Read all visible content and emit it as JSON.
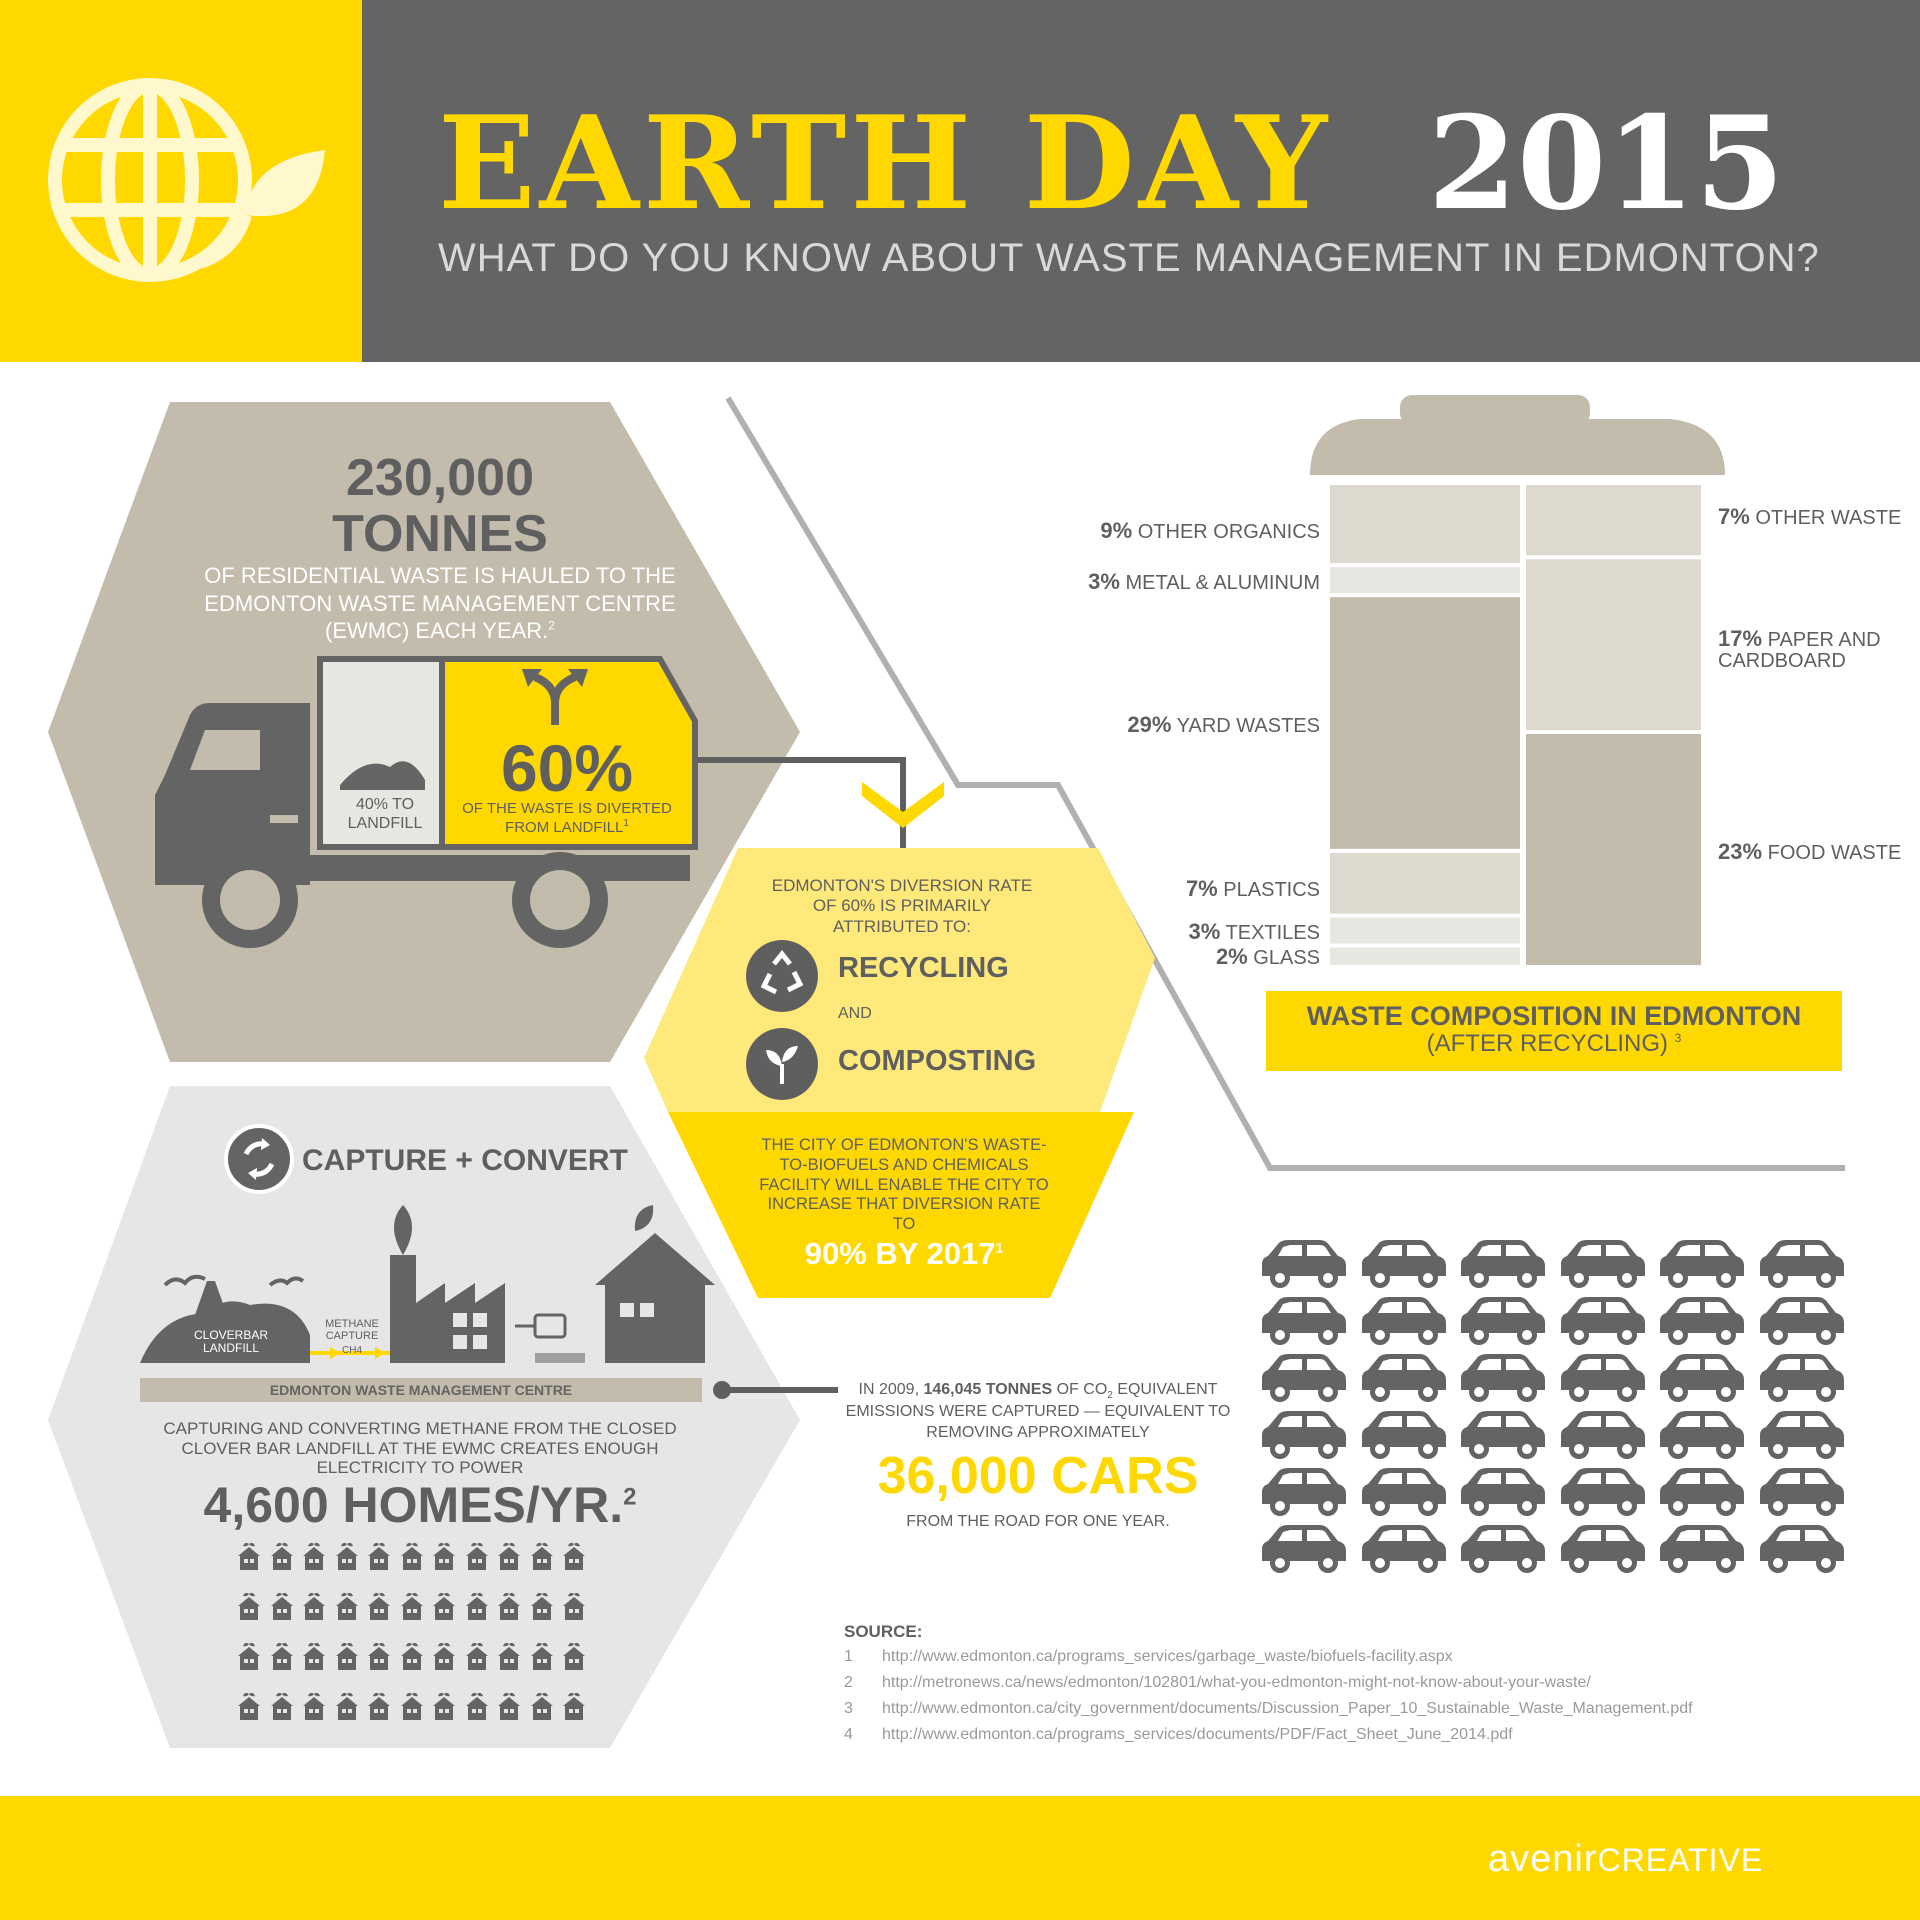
{
  "header": {
    "title_main": "EARTH DAY",
    "title_year": "2015",
    "subtitle": "WHAT DO YOU KNOW ABOUT WASTE MANAGEMENT IN EDMONTON?",
    "logo_icon": "globe-leaf-icon"
  },
  "residential": {
    "amount": "230,000",
    "unit": "TONNES",
    "desc": "OF RESIDENTIAL WASTE IS HAULED TO THE EDMONTON WASTE MANAGEMENT CENTRE (EWMC) EACH YEAR.",
    "desc_ref": "2",
    "landfill_label": "40% TO LANDFILL",
    "diverted_pct": "60%",
    "diverted_desc": "OF THE WASTE IS DIVERTED FROM LANDFILL",
    "diverted_ref": "1",
    "truck_icon": "truck-icon",
    "split_arrow_icon": "split-arrow-icon"
  },
  "diversion": {
    "intro": "EDMONTON'S DIVERSION RATE OF 60% IS PRIMARILY ATTRIBUTED TO:",
    "item1": "RECYCLING",
    "and": "AND",
    "item2": "COMPOSTING",
    "facility_text": "THE CITY OF EDMONTON'S WASTE-TO-BIOFUELS AND CHEMICALS FACILITY WILL ENABLE THE CITY TO INCREASE THAT DIVERSION RATE TO",
    "target": "90% BY 2017",
    "target_ref": "1"
  },
  "composition": {
    "title": "WASTE COMPOSITION IN EDMONTON",
    "subtitle": "(AFTER RECYCLING)",
    "subtitle_ref": "3",
    "left_items": [
      {
        "pct": "9%",
        "label": "OTHER ORGANICS",
        "value": 9
      },
      {
        "pct": "3%",
        "label": "METAL & ALUMINUM",
        "value": 3
      },
      {
        "pct": "29%",
        "label": "YARD WASTES",
        "value": 29
      },
      {
        "pct": "7%",
        "label": "PLASTICS",
        "value": 7
      },
      {
        "pct": "3%",
        "label": "TEXTILES",
        "value": 3
      },
      {
        "pct": "2%",
        "label": "GLASS",
        "value": 2
      }
    ],
    "right_items": [
      {
        "pct": "7%",
        "label": "OTHER WASTE",
        "value": 7
      },
      {
        "pct": "17%",
        "label": "PAPER AND CARDBOARD",
        "value": 17
      },
      {
        "pct": "23%",
        "label": "FOOD WASTE",
        "value": 23
      }
    ],
    "colors": {
      "bin": "#c3bcac",
      "light": "#ddd9cf",
      "lighter": "#e8e6e1"
    }
  },
  "capture": {
    "title": "CAPTURE + CONVERT",
    "landfill_label": "CLOVERBAR LANDFILL",
    "methane_label": "METHANE CAPTURE",
    "ch4": "CH4",
    "ewmc_bar": "EDMONTON WASTE MANAGEMENT CENTRE",
    "desc": "CAPTURING AND CONVERTING METHANE FROM THE CLOSED CLOVER BAR LANDFILL AT THE EWMC CREATES ENOUGH ELECTRICITY TO POWER",
    "homes": "4,600 HOMES/YR.",
    "homes_ref": "2",
    "home_icon_rows": [
      11,
      11,
      11,
      11
    ]
  },
  "emissions": {
    "year_text": "IN 2009,",
    "tonnes": "146,045 TONNES",
    "of_co": "OF CO",
    "co_sub": "2",
    "equiv": "EQUIVALENT EMISSIONS WERE CAPTURED — EQUIVALENT TO REMOVING APPROXIMATELY",
    "cars": "36,000 CARS",
    "road": "FROM THE ROAD FOR ONE YEAR.",
    "car_grid": {
      "rows": 6,
      "cols": 6
    }
  },
  "sources": {
    "heading": "SOURCE:",
    "items": [
      {
        "n": "1",
        "url": "http://www.edmonton.ca/programs_services/garbage_waste/biofuels-facility.aspx"
      },
      {
        "n": "2",
        "url": "http://metronews.ca/news/edmonton/102801/what-you-edmonton-might-not-know-about-your-waste/"
      },
      {
        "n": "3",
        "url": "http://www.edmonton.ca/city_government/documents/Discussion_Paper_10_Sustainable_Waste_Management.pdf"
      },
      {
        "n": "4",
        "url": "http://www.edmonton.ca/programs_services/documents/PDF/Fact_Sheet_June_2014.pdf"
      }
    ]
  },
  "footer": {
    "brand_a": "avenir",
    "brand_b": "CREATIVE"
  },
  "palette": {
    "yellow": "#ffd800",
    "pale_yellow": "#ffe97a",
    "dark_grey": "#646464",
    "taupe": "#c3bcac",
    "light_grey": "#e6e6e6"
  }
}
